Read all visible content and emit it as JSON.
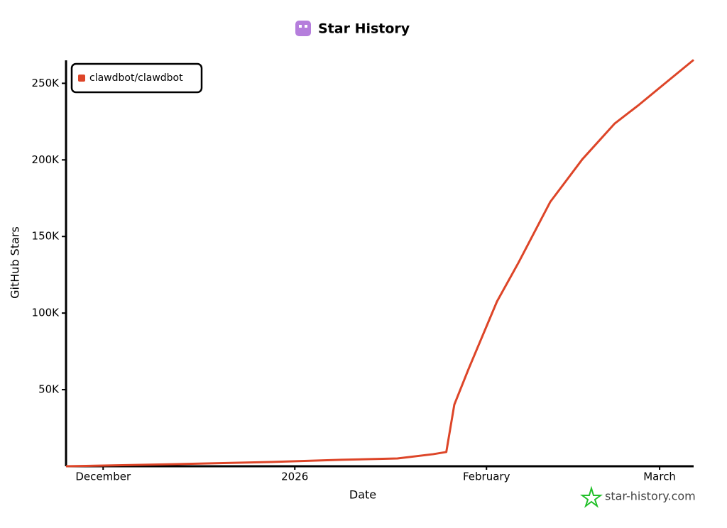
{
  "chart_data": {
    "type": "line",
    "title": "Star History",
    "x_label": "Date",
    "y_label": "GitHub Stars",
    "xlim": [
      -6,
      95.5
    ],
    "xticks": [
      {
        "value": 0,
        "label": "December"
      },
      {
        "value": 31,
        "label": "2026"
      },
      {
        "value": 62,
        "label": "February"
      },
      {
        "value": 90,
        "label": "March"
      }
    ],
    "ylim": [
      0,
      265000
    ],
    "yticks": [
      {
        "value": 50000,
        "label": "50K"
      },
      {
        "value": 100000,
        "label": "100K"
      },
      {
        "value": 150000,
        "label": "150K"
      },
      {
        "value": 200000,
        "label": "200K"
      },
      {
        "value": 250000,
        "label": "250K"
      }
    ],
    "legend": "top-left",
    "series": [
      {
        "name": "clawdbot/clawdbot",
        "color": "#dd4528",
        "x": [
          -6,
          12,
          27,
          38.5,
          47.6,
          53.4,
          55.5,
          56.8,
          59.1,
          63.7,
          67.2,
          72.3,
          77.5,
          82.7,
          86.7,
          91.3,
          95.5
        ],
        "values": [
          0,
          1400,
          2800,
          4200,
          5100,
          7900,
          9300,
          40300,
          63500,
          107600,
          133100,
          172500,
          200400,
          223600,
          236100,
          251400,
          265300
        ]
      }
    ],
    "watermark": "star-history.com"
  }
}
